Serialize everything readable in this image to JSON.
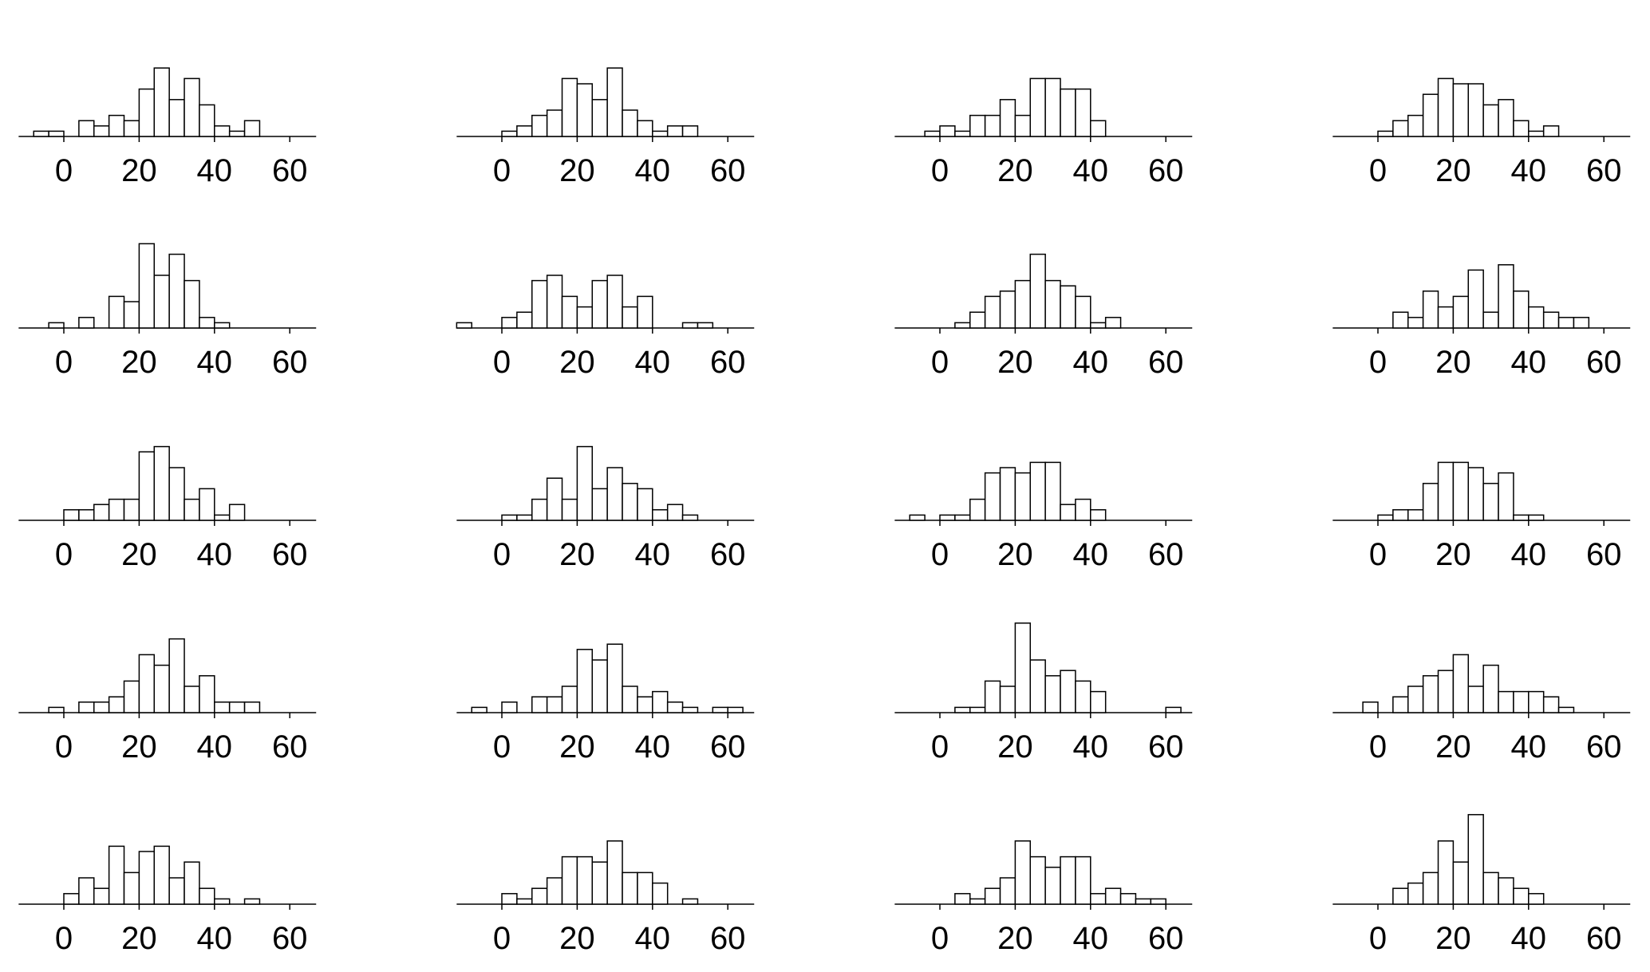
{
  "chart_data": [
    {
      "type": "bar",
      "panel": "r1c1",
      "bin_start": -8,
      "bin_width": 4,
      "values": [
        1,
        1,
        0,
        3,
        2,
        4,
        3,
        9,
        13,
        7,
        11,
        6,
        2,
        1,
        3
      ],
      "xlim": [
        -12,
        67
      ],
      "xticks": [
        0,
        20,
        40,
        60
      ],
      "tick_labels": [
        "0",
        "20",
        "40",
        "60"
      ],
      "title": "",
      "xlabel": "",
      "ylabel": ""
    },
    {
      "type": "bar",
      "panel": "r1c2",
      "bin_start": 0,
      "bin_width": 4,
      "values": [
        1,
        2,
        4,
        5,
        11,
        10,
        7,
        13,
        5,
        3,
        1,
        2,
        2
      ],
      "xlim": [
        -12,
        67
      ],
      "xticks": [
        0,
        20,
        40,
        60
      ],
      "tick_labels": [
        "0",
        "20",
        "40",
        "60"
      ],
      "title": "",
      "xlabel": "",
      "ylabel": ""
    },
    {
      "type": "bar",
      "panel": "r1c3",
      "bin_start": -4,
      "bin_width": 4,
      "values": [
        1,
        2,
        1,
        4,
        4,
        7,
        4,
        11,
        11,
        9,
        9,
        3
      ],
      "xlim": [
        -12,
        67
      ],
      "xticks": [
        0,
        20,
        40,
        60
      ],
      "tick_labels": [
        "0",
        "20",
        "40",
        "60"
      ],
      "title": "",
      "xlabel": "",
      "ylabel": ""
    },
    {
      "type": "bar",
      "panel": "r1c4",
      "bin_start": 0,
      "bin_width": 4,
      "values": [
        1,
        3,
        4,
        8,
        11,
        10,
        10,
        6,
        7,
        3,
        1,
        2
      ],
      "xlim": [
        -12,
        67
      ],
      "xticks": [
        0,
        20,
        40,
        60
      ],
      "tick_labels": [
        "0",
        "20",
        "40",
        "60"
      ],
      "title": "",
      "xlabel": "",
      "ylabel": ""
    },
    {
      "type": "bar",
      "panel": "r2c1",
      "bin_start": -4,
      "bin_width": 4,
      "values": [
        1,
        0,
        2,
        0,
        6,
        5,
        16,
        10,
        14,
        9,
        2,
        1
      ],
      "xlim": [
        -12,
        67
      ],
      "xticks": [
        0,
        20,
        40,
        60
      ],
      "tick_labels": [
        "0",
        "20",
        "40",
        "60"
      ],
      "title": "",
      "xlabel": "",
      "ylabel": ""
    },
    {
      "type": "bar",
      "panel": "r2c2",
      "bin_start": -12,
      "bin_width": 4,
      "values": [
        1,
        0,
        0,
        2,
        3,
        9,
        10,
        6,
        4,
        9,
        10,
        4,
        6,
        0,
        0,
        1,
        1
      ],
      "xlim": [
        -12,
        67
      ],
      "xticks": [
        0,
        20,
        40,
        60
      ],
      "tick_labels": [
        "0",
        "20",
        "40",
        "60"
      ],
      "title": "",
      "xlabel": "",
      "ylabel": ""
    },
    {
      "type": "bar",
      "panel": "r2c3",
      "bin_start": 4,
      "bin_width": 4,
      "values": [
        1,
        3,
        6,
        7,
        9,
        14,
        9,
        8,
        6,
        1,
        2
      ],
      "xlim": [
        -12,
        67
      ],
      "xticks": [
        0,
        20,
        40,
        60
      ],
      "tick_labels": [
        "0",
        "20",
        "40",
        "60"
      ],
      "title": "",
      "xlabel": "",
      "ylabel": ""
    },
    {
      "type": "bar",
      "panel": "r2c4",
      "bin_start": 4,
      "bin_width": 4,
      "values": [
        3,
        2,
        7,
        4,
        6,
        11,
        3,
        12,
        7,
        4,
        3,
        2,
        2
      ],
      "xlim": [
        -12,
        67
      ],
      "xticks": [
        0,
        20,
        40,
        60
      ],
      "tick_labels": [
        "0",
        "20",
        "40",
        "60"
      ],
      "title": "",
      "xlabel": "",
      "ylabel": ""
    },
    {
      "type": "bar",
      "panel": "r3c1",
      "bin_start": 0,
      "bin_width": 4,
      "values": [
        2,
        2,
        3,
        4,
        4,
        13,
        14,
        10,
        4,
        6,
        1,
        3
      ],
      "xlim": [
        -12,
        67
      ],
      "xticks": [
        0,
        20,
        40,
        60
      ],
      "tick_labels": [
        "0",
        "20",
        "40",
        "60"
      ],
      "title": "",
      "xlabel": "",
      "ylabel": ""
    },
    {
      "type": "bar",
      "panel": "r3c2",
      "bin_start": 0,
      "bin_width": 4,
      "values": [
        1,
        1,
        4,
        8,
        4,
        14,
        6,
        10,
        7,
        6,
        2,
        3,
        1
      ],
      "xlim": [
        -12,
        67
      ],
      "xticks": [
        0,
        20,
        40,
        60
      ],
      "tick_labels": [
        "0",
        "20",
        "40",
        "60"
      ],
      "title": "",
      "xlabel": "",
      "ylabel": ""
    },
    {
      "type": "bar",
      "panel": "r3c3",
      "bin_start": -8,
      "bin_width": 4,
      "values": [
        1,
        0,
        1,
        1,
        4,
        9,
        10,
        9,
        11,
        11,
        3,
        4,
        2
      ],
      "xlim": [
        -12,
        67
      ],
      "xticks": [
        0,
        20,
        40,
        60
      ],
      "tick_labels": [
        "0",
        "20",
        "40",
        "60"
      ],
      "title": "",
      "xlabel": "",
      "ylabel": ""
    },
    {
      "type": "bar",
      "panel": "r3c4",
      "bin_start": 0,
      "bin_width": 4,
      "values": [
        1,
        2,
        2,
        7,
        11,
        11,
        10,
        7,
        9,
        1,
        1
      ],
      "xlim": [
        -12,
        67
      ],
      "xticks": [
        0,
        20,
        40,
        60
      ],
      "tick_labels": [
        "0",
        "20",
        "40",
        "60"
      ],
      "title": "",
      "xlabel": "",
      "ylabel": ""
    },
    {
      "type": "bar",
      "panel": "r4c1",
      "bin_start": -4,
      "bin_width": 4,
      "values": [
        1,
        0,
        2,
        2,
        3,
        6,
        11,
        9,
        14,
        5,
        7,
        2,
        2,
        2
      ],
      "xlim": [
        -12,
        67
      ],
      "xticks": [
        0,
        20,
        40,
        60
      ],
      "tick_labels": [
        "0",
        "20",
        "40",
        "60"
      ],
      "title": "",
      "xlabel": "",
      "ylabel": ""
    },
    {
      "type": "bar",
      "panel": "r4c2",
      "bin_start": -8,
      "bin_width": 4,
      "values": [
        1,
        0,
        2,
        0,
        3,
        3,
        5,
        12,
        10,
        13,
        5,
        3,
        4,
        2,
        1,
        0,
        1,
        1
      ],
      "xlim": [
        -12,
        67
      ],
      "xticks": [
        0,
        20,
        40,
        60
      ],
      "tick_labels": [
        "0",
        "20",
        "40",
        "60"
      ],
      "title": "",
      "xlabel": "",
      "ylabel": ""
    },
    {
      "type": "bar",
      "panel": "r4c3",
      "bin_start": 4,
      "bin_width": 4,
      "values": [
        1,
        1,
        6,
        5,
        17,
        10,
        7,
        8,
        6,
        4,
        0,
        0,
        0,
        0,
        1
      ],
      "xlim": [
        -12,
        67
      ],
      "xticks": [
        0,
        20,
        40,
        60
      ],
      "tick_labels": [
        "0",
        "20",
        "40",
        "60"
      ],
      "title": "",
      "xlabel": "",
      "ylabel": ""
    },
    {
      "type": "bar",
      "panel": "r4c4",
      "bin_start": -4,
      "bin_width": 4,
      "values": [
        2,
        0,
        3,
        5,
        7,
        8,
        11,
        5,
        9,
        4,
        4,
        4,
        3,
        1
      ],
      "xlim": [
        -12,
        67
      ],
      "xticks": [
        0,
        20,
        40,
        60
      ],
      "tick_labels": [
        "0",
        "20",
        "40",
        "60"
      ],
      "title": "",
      "xlabel": "",
      "ylabel": ""
    },
    {
      "type": "bar",
      "panel": "r5c1",
      "bin_start": 0,
      "bin_width": 4,
      "values": [
        2,
        5,
        3,
        11,
        6,
        10,
        11,
        5,
        8,
        3,
        1,
        0,
        1
      ],
      "xlim": [
        -12,
        67
      ],
      "xticks": [
        0,
        20,
        40,
        60
      ],
      "tick_labels": [
        "0",
        "20",
        "40",
        "60"
      ],
      "title": "",
      "xlabel": "",
      "ylabel": ""
    },
    {
      "type": "bar",
      "panel": "r5c2",
      "bin_start": 0,
      "bin_width": 4,
      "values": [
        2,
        1,
        3,
        5,
        9,
        9,
        8,
        12,
        6,
        6,
        4,
        0,
        1
      ],
      "xlim": [
        -12,
        67
      ],
      "xticks": [
        0,
        20,
        40,
        60
      ],
      "tick_labels": [
        "0",
        "20",
        "40",
        "60"
      ],
      "title": "",
      "xlabel": "",
      "ylabel": ""
    },
    {
      "type": "bar",
      "panel": "r5c3",
      "bin_start": 4,
      "bin_width": 4,
      "values": [
        2,
        1,
        3,
        5,
        12,
        9,
        7,
        9,
        9,
        2,
        3,
        2,
        1,
        1
      ],
      "xlim": [
        -12,
        67
      ],
      "xticks": [
        0,
        20,
        40,
        60
      ],
      "tick_labels": [
        "0",
        "20",
        "40",
        "60"
      ],
      "title": "",
      "xlabel": "",
      "ylabel": ""
    },
    {
      "type": "bar",
      "panel": "r5c4",
      "bin_start": 4,
      "bin_width": 4,
      "values": [
        3,
        4,
        6,
        12,
        8,
        17,
        6,
        5,
        3,
        2
      ],
      "xlim": [
        -12,
        67
      ],
      "xticks": [
        0,
        20,
        40,
        60
      ],
      "tick_labels": [
        "0",
        "20",
        "40",
        "60"
      ],
      "title": "",
      "xlabel": "",
      "ylabel": ""
    }
  ]
}
